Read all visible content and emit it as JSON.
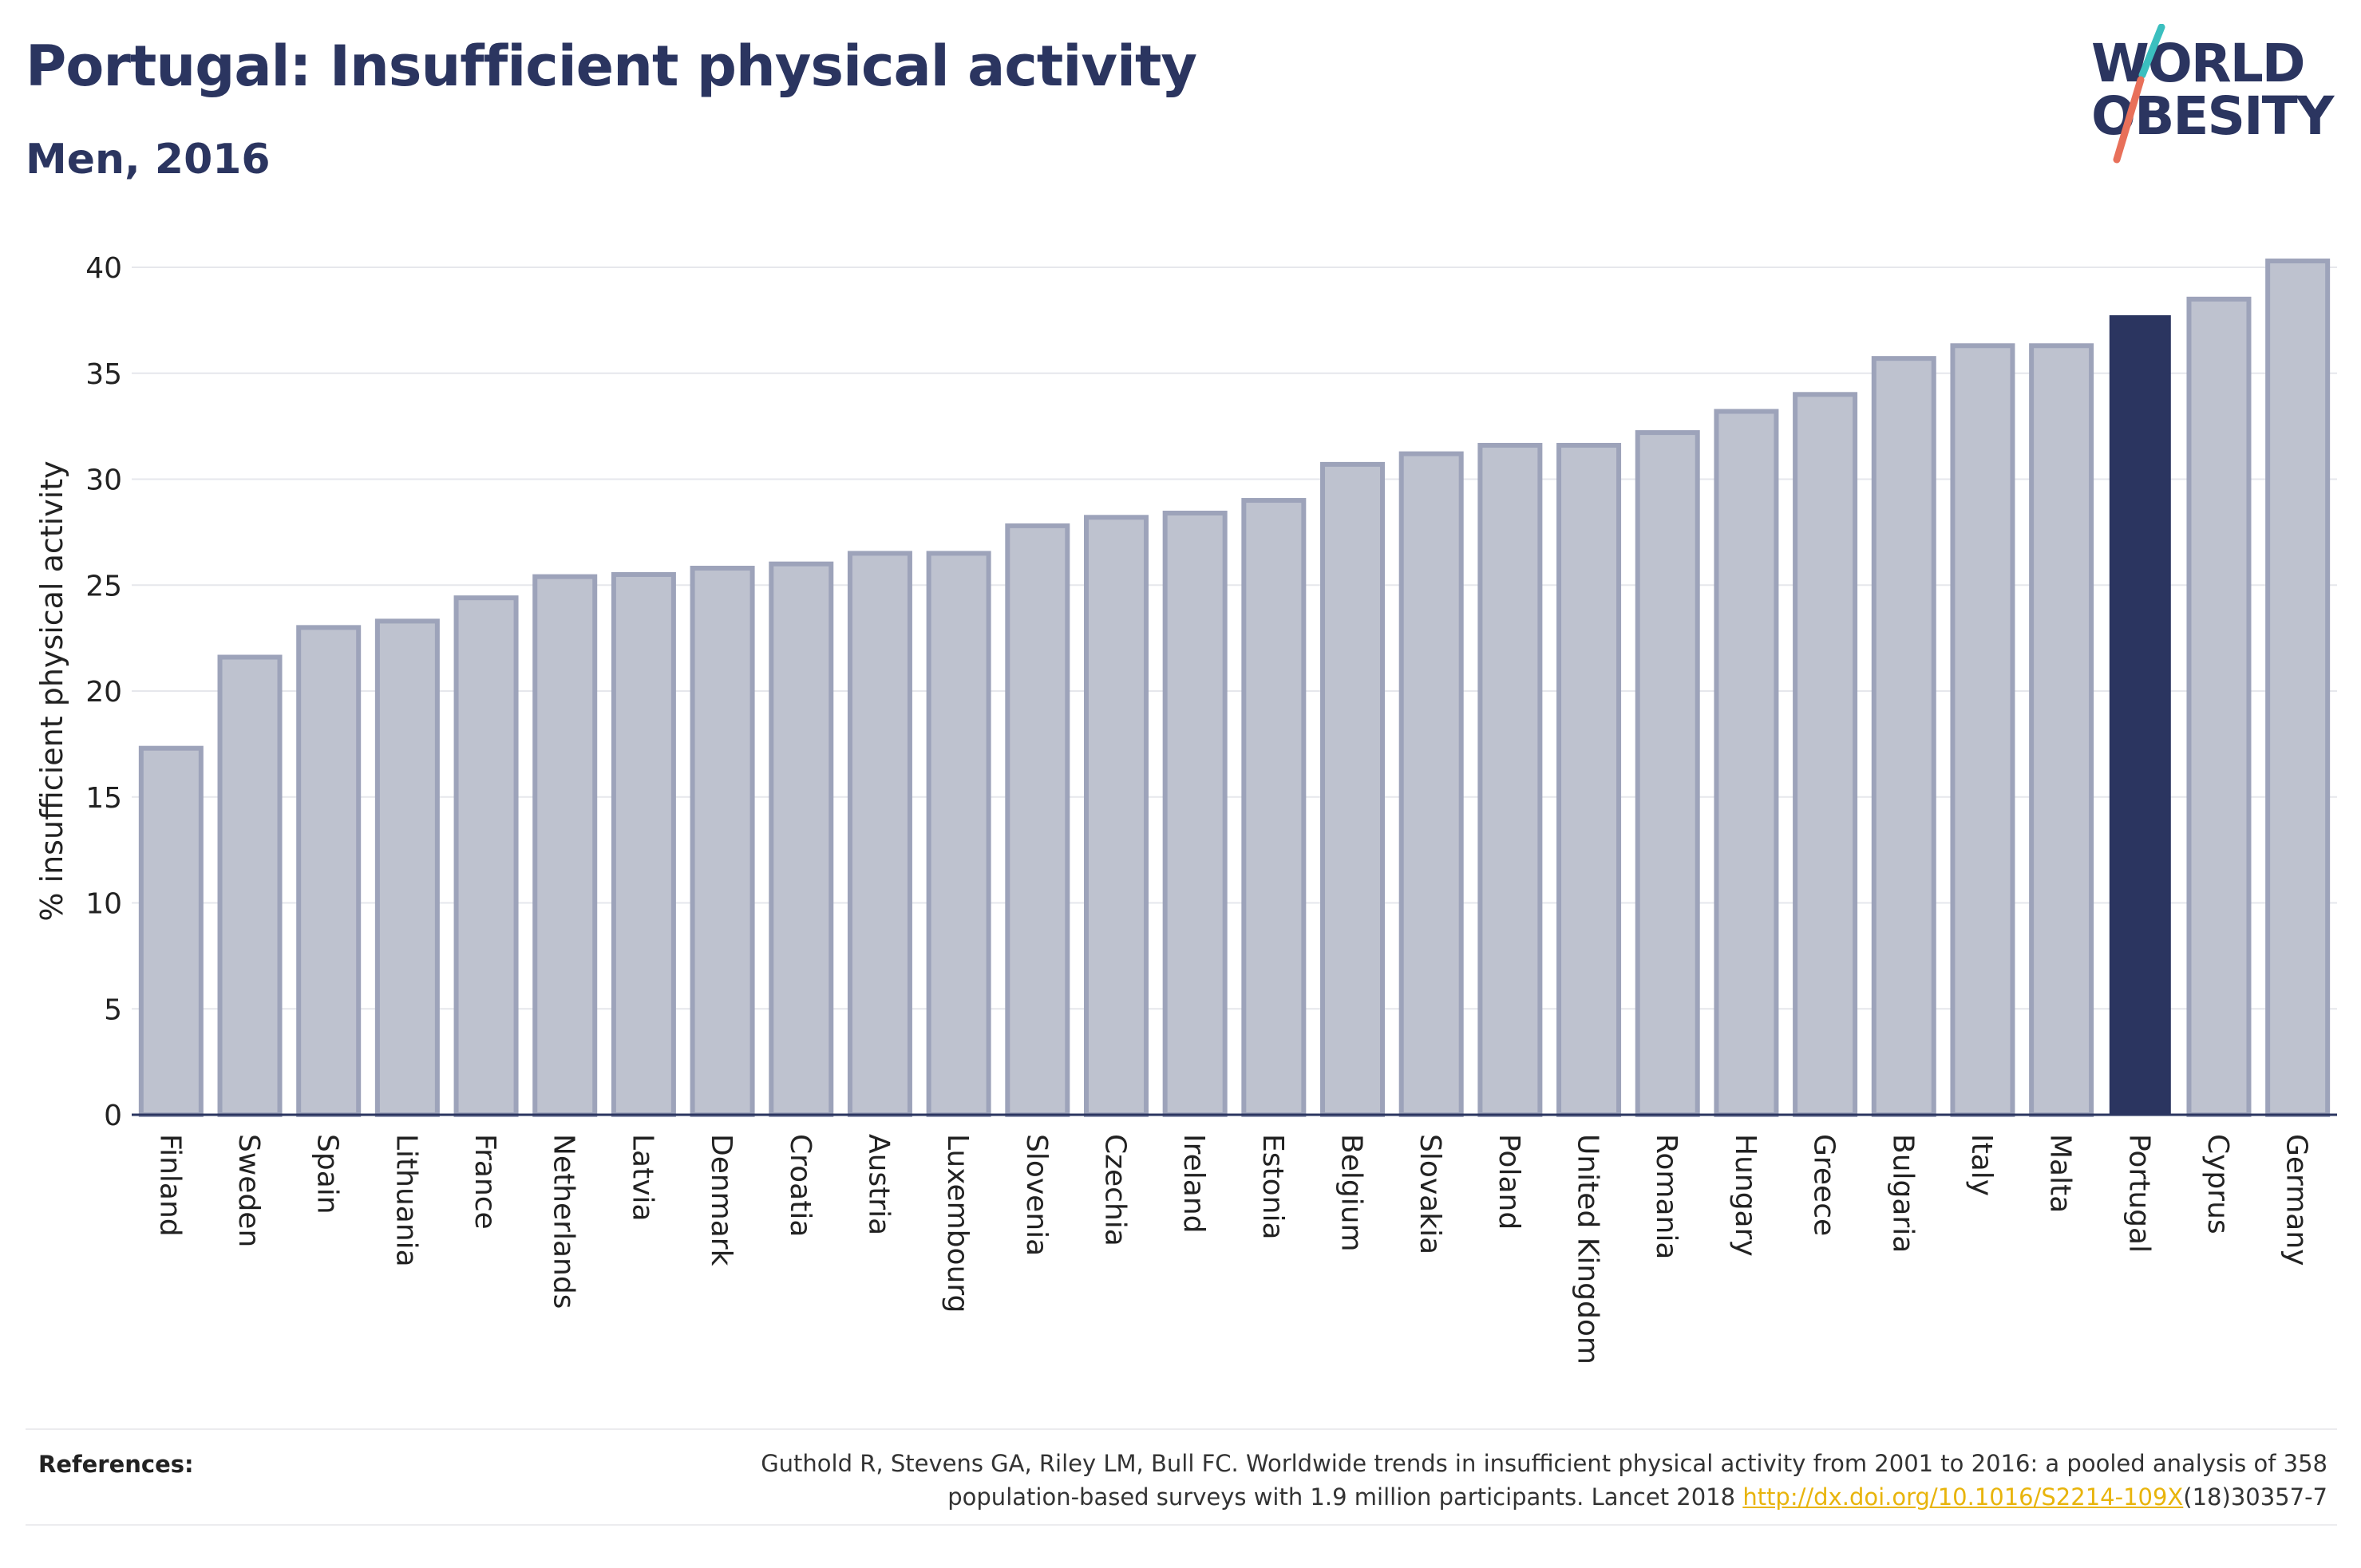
{
  "header": {
    "title": "Portugal: Insufficient physical activity",
    "subtitle": "Men, 2016"
  },
  "logo": {
    "line1": "WORLD",
    "line2": "OBESITY",
    "text_color": "#2b3560",
    "slash_top_color": "#3bbfbf",
    "slash_bottom_color": "#e8705a"
  },
  "chart_data": {
    "type": "bar",
    "title": "Portugal: Insufficient physical activity",
    "subtitle": "Men, 2016",
    "xlabel": "",
    "ylabel": "% insufficient physical activity",
    "ylim": [
      0,
      40
    ],
    "yticks": [
      0,
      5,
      10,
      15,
      20,
      25,
      30,
      35,
      40
    ],
    "grid": true,
    "highlight": "Portugal",
    "colors": {
      "bar": "#bec2cf",
      "bar_edge": "#9da3ba",
      "highlight": "#2b3560",
      "axis": "#2b3560",
      "grid": "#e6e7ec"
    },
    "categories": [
      "Finland",
      "Sweden",
      "Spain",
      "Lithuania",
      "France",
      "Netherlands",
      "Latvia",
      "Denmark",
      "Croatia",
      "Austria",
      "Luxembourg",
      "Slovenia",
      "Czechia",
      "Ireland",
      "Estonia",
      "Belgium",
      "Slovakia",
      "Poland",
      "United Kingdom",
      "Romania",
      "Hungary",
      "Greece",
      "Bulgaria",
      "Italy",
      "Malta",
      "Portugal",
      "Cyprus",
      "Germany"
    ],
    "values": [
      17.3,
      21.6,
      23.0,
      23.3,
      24.4,
      25.4,
      25.5,
      25.8,
      26.0,
      26.5,
      26.5,
      27.8,
      28.2,
      28.4,
      29.0,
      30.7,
      31.2,
      31.6,
      31.6,
      32.2,
      33.2,
      34.0,
      35.7,
      36.3,
      36.3,
      37.7,
      38.5,
      40.3
    ]
  },
  "references": {
    "label": "References:",
    "text_line1": "Guthold R, Stevens GA, Riley LM, Bull FC. Worldwide trends in insufficient physical activity from 2001 to 2016: a pooled analysis of 358",
    "text_line2_before": "population-based surveys with 1.9 million participants. Lancet 2018 ",
    "link": "http://dx.doi.org/10.1016/S2214-109X",
    "text_line2_after": "(18)30357-7"
  }
}
